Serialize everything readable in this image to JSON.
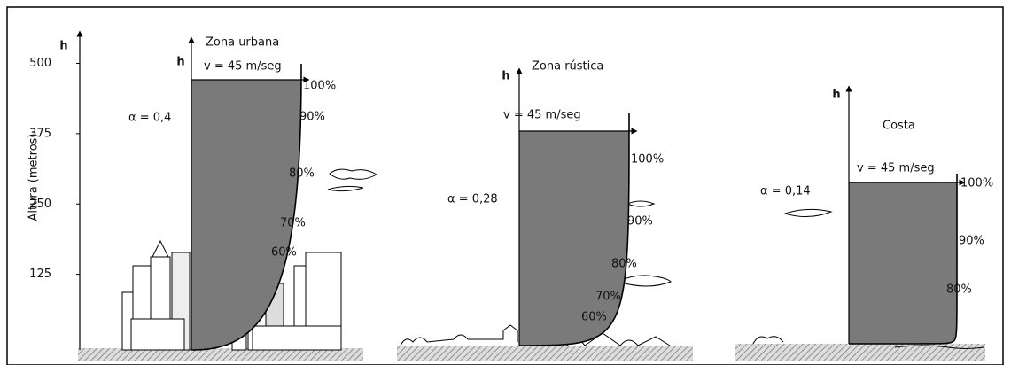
{
  "axis": {
    "label": "Altura (metros)",
    "h_label": "h",
    "ticks": [
      500,
      375,
      250,
      125
    ]
  },
  "panels": [
    {
      "title": "Zona urbana",
      "h_label": "h",
      "velocity": "v = 45 m/seg",
      "alpha": "α = 0,4",
      "percents": [
        "100%",
        "90%",
        "80%",
        "70%",
        "60%"
      ]
    },
    {
      "title": "Zona rústica",
      "h_label": "h",
      "velocity": "v = 45 m/seg",
      "alpha": "α = 0,28",
      "percents": [
        "100%",
        "90%",
        "80%",
        "70%",
        "60%"
      ]
    },
    {
      "title": "Costa",
      "h_label": "h",
      "velocity": "v = 45 m/seg",
      "alpha": "α = 0,14",
      "percents": [
        "100%",
        "90%",
        "80%"
      ]
    }
  ]
}
